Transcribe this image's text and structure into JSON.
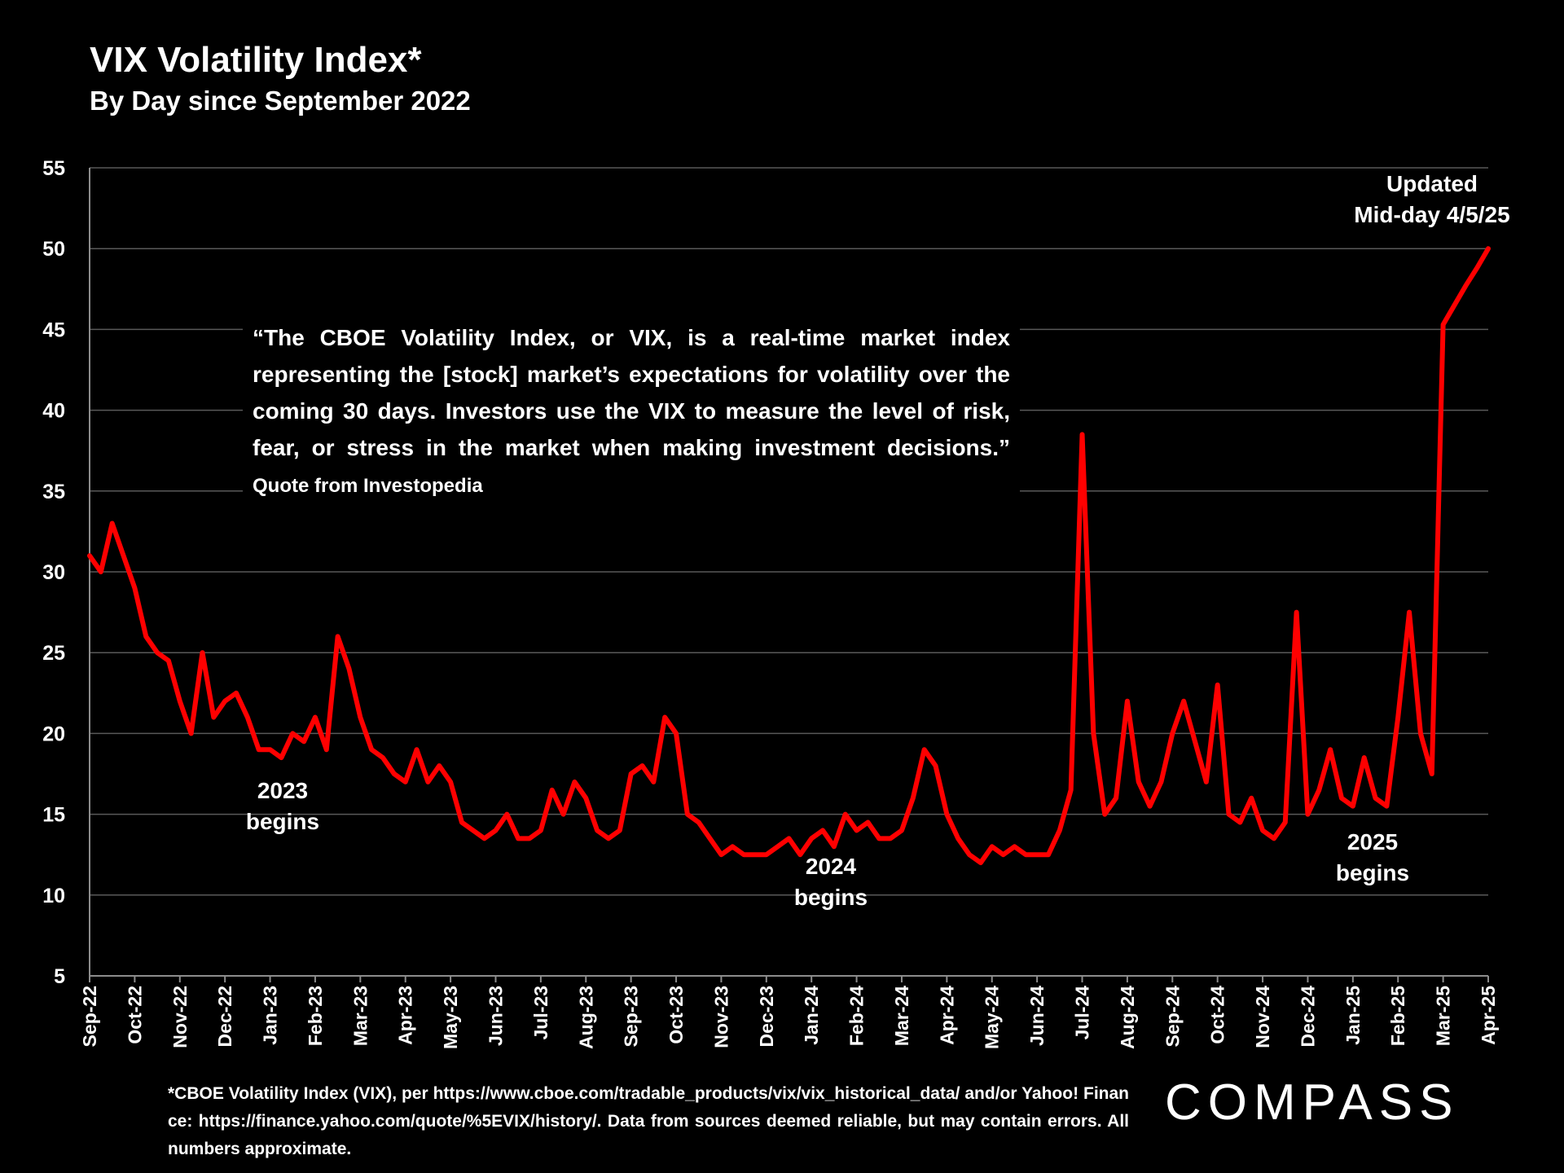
{
  "chart_data": {
    "type": "line",
    "title": "VIX Volatility Index*",
    "subtitle": "By Day since September 2022",
    "color": "#ff0000",
    "grid": true,
    "ylim": [
      5,
      55
    ],
    "yticks": [
      5,
      10,
      15,
      20,
      25,
      30,
      35,
      40,
      45,
      50,
      55
    ],
    "categories": [
      "Sep-22",
      null,
      null,
      null,
      "Oct-22",
      null,
      null,
      null,
      "Nov-22",
      null,
      null,
      null,
      "Dec-22",
      null,
      null,
      null,
      "Jan-23",
      null,
      null,
      null,
      "Feb-23",
      null,
      null,
      null,
      "Mar-23",
      null,
      null,
      null,
      "Apr-23",
      null,
      null,
      null,
      "May-23",
      null,
      null,
      null,
      "Jun-23",
      null,
      null,
      null,
      "Jul-23",
      null,
      null,
      null,
      "Aug-23",
      null,
      null,
      null,
      "Sep-23",
      null,
      null,
      null,
      "Oct-23",
      null,
      null,
      null,
      "Nov-23",
      null,
      null,
      null,
      "Dec-23",
      null,
      null,
      null,
      "Jan-24",
      null,
      null,
      null,
      "Feb-24",
      null,
      null,
      null,
      "Mar-24",
      null,
      null,
      null,
      "Apr-24",
      null,
      null,
      null,
      "May-24",
      null,
      null,
      null,
      "Jun-24",
      null,
      null,
      null,
      "Jul-24",
      null,
      null,
      null,
      "Aug-24",
      null,
      null,
      null,
      "Sep-24",
      null,
      null,
      null,
      "Oct-24",
      null,
      null,
      null,
      "Nov-24",
      null,
      null,
      null,
      "Dec-24",
      null,
      null,
      null,
      "Jan-25",
      null,
      null,
      null,
      "Feb-25",
      null,
      null,
      null,
      "Mar-25",
      null,
      null,
      null,
      "Apr-25"
    ],
    "values": [
      31,
      30,
      33,
      31,
      29,
      26,
      25,
      24.5,
      22,
      20,
      25,
      21,
      22,
      22.5,
      21,
      19,
      19,
      18.5,
      20,
      19.5,
      21,
      19,
      26,
      24,
      21,
      19,
      18.5,
      17.5,
      17,
      19,
      17,
      18,
      17,
      14.5,
      14,
      13.5,
      14,
      15,
      13.5,
      13.5,
      14,
      16.5,
      15,
      17,
      16,
      14,
      13.5,
      14,
      17.5,
      18,
      17,
      21,
      20,
      15,
      14.5,
      13.5,
      12.5,
      13,
      12.5,
      12.5,
      12.5,
      13,
      13.5,
      12.5,
      13.5,
      14,
      13,
      15,
      14,
      14.5,
      13.5,
      13.5,
      14,
      16,
      19,
      18,
      15,
      13.5,
      12.5,
      12,
      13,
      12.5,
      13,
      12.5,
      12.5,
      12.5,
      14,
      16.5,
      38.5,
      20,
      15,
      16,
      22,
      17,
      15.5,
      17,
      20,
      22,
      19.5,
      17,
      23,
      15,
      14.5,
      16,
      14,
      13.5,
      14.5,
      27.5,
      15,
      16.5,
      19,
      16,
      15.5,
      18.5,
      16,
      15.5,
      21,
      27.5,
      20,
      17.5,
      45.3,
      46.5,
      47.7,
      48.8,
      50
    ],
    "annotations": [
      {
        "lines": [
          "2023",
          "begins"
        ]
      },
      {
        "lines": [
          "2024",
          "begins"
        ]
      },
      {
        "lines": [
          "2025",
          "begins"
        ]
      },
      {
        "lines": [
          "Updated",
          "Mid-day 4/5/25"
        ]
      }
    ]
  },
  "quote": {
    "text": "“The CBOE Volatility Index, or VIX, is a real-time market index representing the [stock] market’s expectations for volatility over the coming 30 days. Investors use the VIX to measure the level of risk, fear, or stress in the market when making investment decisions.”",
    "source": "Quote from Investopedia"
  },
  "footnote": "*CBOE Volatility Index (VIX), per https://www.cboe.com/tradable_products/vix/vix_historical_data/ and/or Yahoo! Finance: https://finance.yahoo.com/quote/%5EVIX/history/. Data from sources deemed reliable, but may contain errors. All numbers approximate.",
  "logo": "COMPASS"
}
